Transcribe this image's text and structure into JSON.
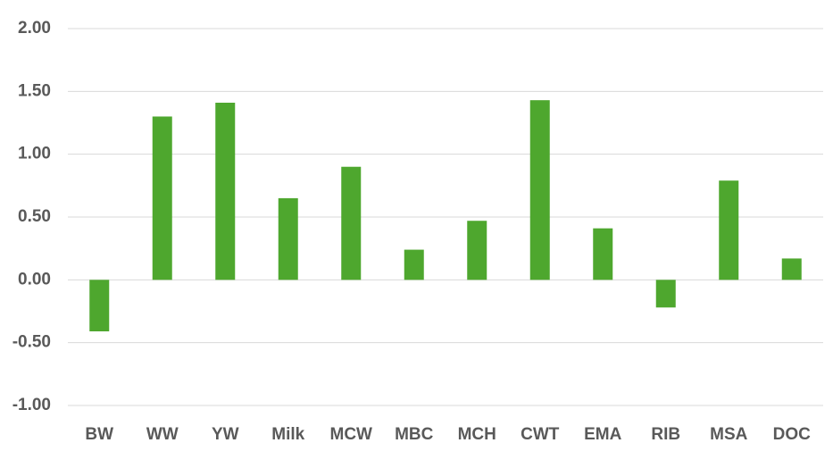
{
  "chart_data": {
    "type": "bar",
    "categories": [
      "BW",
      "WW",
      "YW",
      "Milk",
      "MCW",
      "MBC",
      "MCH",
      "CWT",
      "EMA",
      "RIB",
      "MSA",
      "DOC"
    ],
    "values": [
      -0.41,
      1.3,
      1.41,
      0.65,
      0.9,
      0.24,
      0.47,
      1.43,
      0.41,
      -0.22,
      0.79,
      0.17
    ],
    "color": "#4ea72e",
    "ylim": [
      -1,
      2
    ],
    "yticks": [
      {
        "value": -1,
        "label": "-1.00"
      },
      {
        "value": -0.5,
        "label": "-0.50"
      },
      {
        "value": 0,
        "label": "0.00"
      },
      {
        "value": 0.5,
        "label": "0.50"
      },
      {
        "value": 1,
        "label": "1.00"
      },
      {
        "value": 1.5,
        "label": "1.50"
      },
      {
        "value": 2,
        "label": "2.00"
      }
    ],
    "grid": true
  }
}
